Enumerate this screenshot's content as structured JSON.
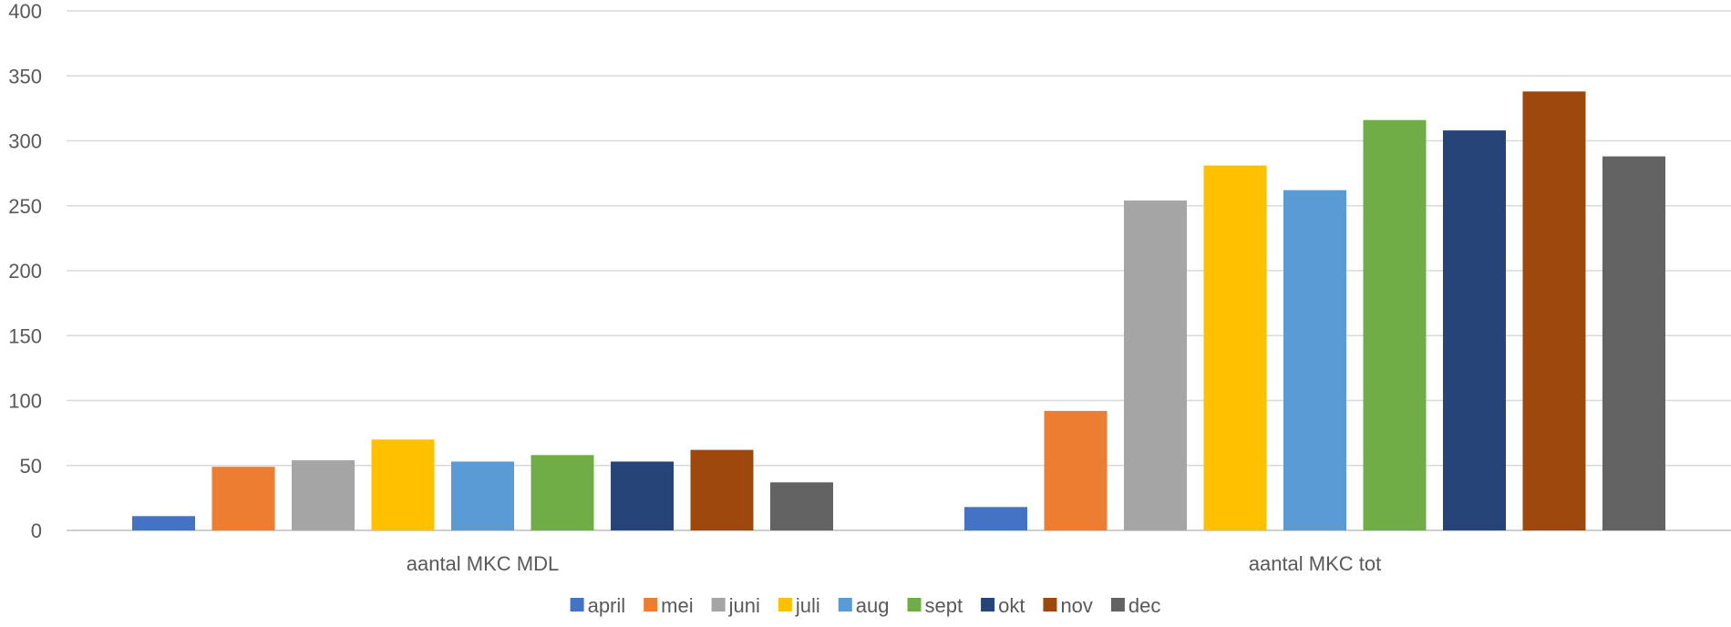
{
  "chart_data": {
    "type": "bar",
    "categories": [
      "aantal MKC MDL",
      "aantal MKC tot"
    ],
    "series": [
      {
        "name": "april",
        "color": "#4472C4",
        "values": [
          11,
          18
        ]
      },
      {
        "name": "mei",
        "color": "#ED7D31",
        "values": [
          49,
          92
        ]
      },
      {
        "name": "juni",
        "color": "#A5A5A5",
        "values": [
          54,
          254
        ]
      },
      {
        "name": "juli",
        "color": "#FFC000",
        "values": [
          70,
          281
        ]
      },
      {
        "name": "aug",
        "color": "#5B9BD5",
        "values": [
          53,
          262
        ]
      },
      {
        "name": "sept",
        "color": "#70AD47",
        "values": [
          58,
          316
        ]
      },
      {
        "name": "okt",
        "color": "#264478",
        "values": [
          53,
          308
        ]
      },
      {
        "name": "nov",
        "color": "#9E480E",
        "values": [
          62,
          338
        ]
      },
      {
        "name": "dec",
        "color": "#636363",
        "values": [
          37,
          288
        ]
      }
    ],
    "ylim": [
      0,
      400
    ],
    "yticks": [
      0,
      50,
      100,
      150,
      200,
      250,
      300,
      350,
      400
    ],
    "grid": true,
    "legend_position": "bottom",
    "title": "",
    "xlabel": "",
    "ylabel": ""
  }
}
